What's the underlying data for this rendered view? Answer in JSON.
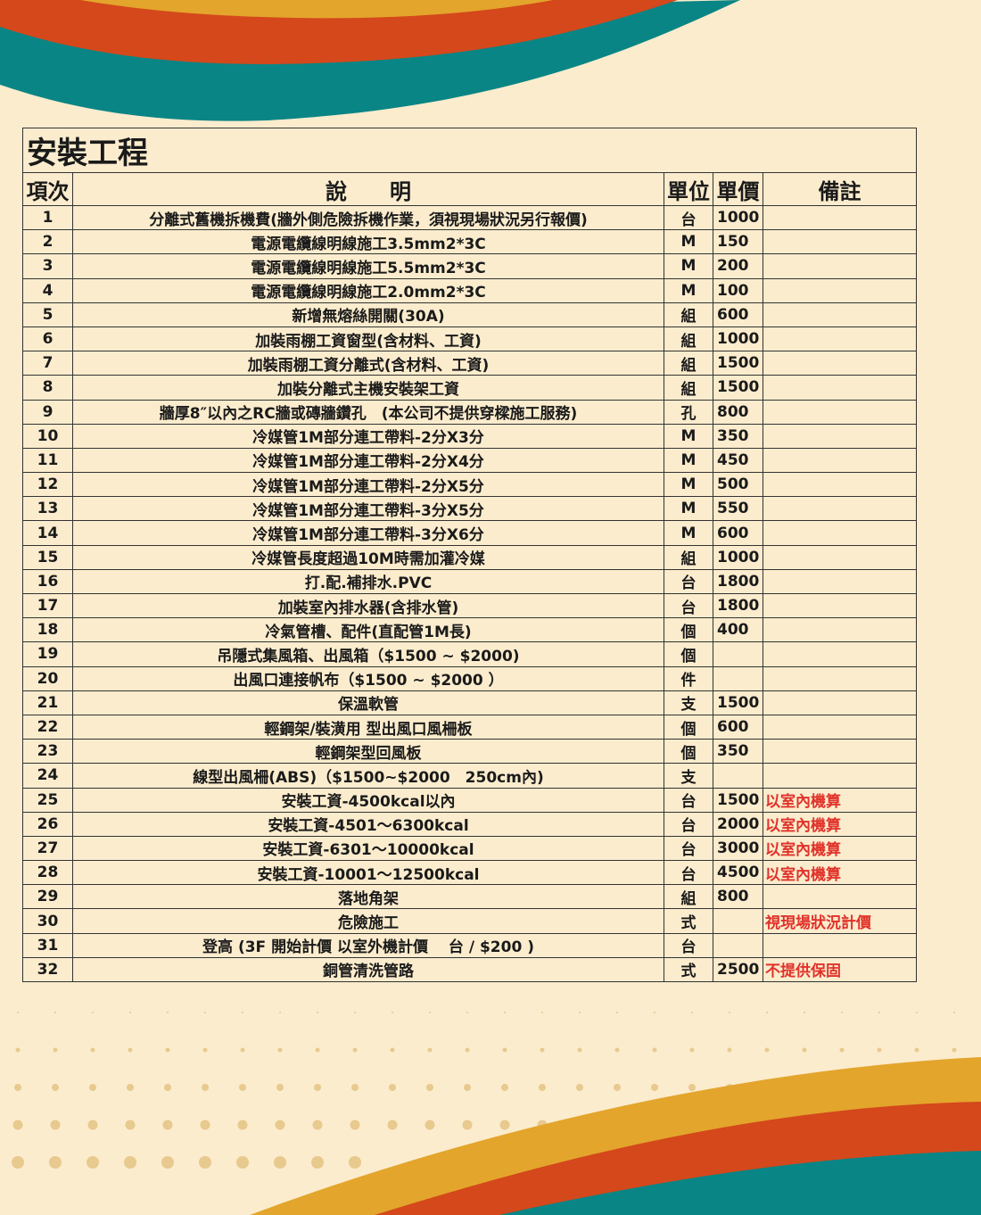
{
  "colors": {
    "background": "#fbeccd",
    "yellow": "#e3a52c",
    "orange": "#d4481b",
    "teal": "#0a8585",
    "note_red": "#e0322a"
  },
  "title": "安裝工程",
  "headers": {
    "no": "項次",
    "desc": "說　　明",
    "unit": "單位",
    "price": "單價",
    "note": "備註"
  },
  "rows": [
    {
      "no": "1",
      "desc": "分離式舊機拆機費(牆外側危險拆機作業，須視現場狀況另行報價)",
      "unit": "台",
      "price": "1000",
      "note": ""
    },
    {
      "no": "2",
      "desc": "電源電纜線明線施工3.5mm2*3C",
      "unit": "M",
      "price": "150",
      "note": ""
    },
    {
      "no": "3",
      "desc": "電源電纜線明線施工5.5mm2*3C",
      "unit": "M",
      "price": "200",
      "note": ""
    },
    {
      "no": "4",
      "desc": "電源電纜線明線施工2.0mm2*3C",
      "unit": "M",
      "price": "100",
      "note": ""
    },
    {
      "no": "5",
      "desc": "新增無熔絲開關(30A)",
      "unit": "組",
      "price": "600",
      "note": ""
    },
    {
      "no": "6",
      "desc": "加裝雨棚工資窗型(含材料、工資)",
      "unit": "組",
      "price": "1000",
      "note": ""
    },
    {
      "no": "7",
      "desc": "加裝雨棚工資分離式(含材料、工資)",
      "unit": "組",
      "price": "1500",
      "note": ""
    },
    {
      "no": "8",
      "desc": "加裝分離式主機安裝架工資",
      "unit": "組",
      "price": "1500",
      "note": ""
    },
    {
      "no": "9",
      "desc": "牆厚8″以內之RC牆或磚牆鑽孔　(本公司不提供穿樑施工服務)",
      "unit": "孔",
      "price": "800",
      "note": ""
    },
    {
      "no": "10",
      "desc": "冷媒管1M部分連工帶料-2分X3分",
      "unit": "M",
      "price": "350",
      "note": ""
    },
    {
      "no": "11",
      "desc": "冷媒管1M部分連工帶料-2分X4分",
      "unit": "M",
      "price": "450",
      "note": ""
    },
    {
      "no": "12",
      "desc": "冷媒管1M部分連工帶料-2分X5分",
      "unit": "M",
      "price": "500",
      "note": ""
    },
    {
      "no": "13",
      "desc": "冷媒管1M部分連工帶料-3分X5分",
      "unit": "M",
      "price": "550",
      "note": ""
    },
    {
      "no": "14",
      "desc": "冷媒管1M部分連工帶料-3分X6分",
      "unit": "M",
      "price": "600",
      "note": ""
    },
    {
      "no": "15",
      "desc": "冷媒管長度超過10M時需加灌冷媒",
      "unit": "組",
      "price": "1000",
      "note": ""
    },
    {
      "no": "16",
      "desc": "打.配.補排水.PVC",
      "unit": "台",
      "price": "1800",
      "note": ""
    },
    {
      "no": "17",
      "desc": "加裝室內排水器(含排水管)",
      "unit": "台",
      "price": "1800",
      "note": ""
    },
    {
      "no": "18",
      "desc": "冷氣管槽、配件(直配管1M長)",
      "unit": "個",
      "price": "400",
      "note": ""
    },
    {
      "no": "19",
      "desc": "吊隱式集風箱、出風箱（$1500 ~ $2000)",
      "unit": "個",
      "price": "",
      "note": ""
    },
    {
      "no": "20",
      "desc": "出風口連接帆布（$1500 ~ $2000 ）",
      "unit": "件",
      "price": "",
      "note": ""
    },
    {
      "no": "21",
      "desc": "保溫軟管",
      "unit": "支",
      "price": "1500",
      "note": ""
    },
    {
      "no": "22",
      "desc": "輕鋼架/裝潢用 型出風口風柵板",
      "unit": "個",
      "price": "600",
      "note": ""
    },
    {
      "no": "23",
      "desc": "輕鋼架型回風板",
      "unit": "個",
      "price": "350",
      "note": ""
    },
    {
      "no": "24",
      "desc": "線型出風柵(ABS)（$1500~$2000　250cm內)",
      "unit": "支",
      "price": "",
      "note": ""
    },
    {
      "no": "25",
      "desc": "安裝工資-4500kcal以內",
      "unit": "台",
      "price": "1500",
      "note": "以室內機算"
    },
    {
      "no": "26",
      "desc": "安裝工資-4501～6300kcal",
      "unit": "台",
      "price": "2000",
      "note": "以室內機算"
    },
    {
      "no": "27",
      "desc": "安裝工資-6301～10000kcal",
      "unit": "台",
      "price": "3000",
      "note": "以室內機算"
    },
    {
      "no": "28",
      "desc": "安裝工資-10001～12500kcal",
      "unit": "台",
      "price": "4500",
      "note": "以室內機算"
    },
    {
      "no": "29",
      "desc": "落地角架",
      "unit": "組",
      "price": "800",
      "note": ""
    },
    {
      "no": "30",
      "desc": "危險施工",
      "unit": "式",
      "price": "",
      "note": "視現場狀況計價"
    },
    {
      "no": "31",
      "desc": "登高 (3F 開始計價 以室外機計價　 台 / $200 )",
      "unit": "台",
      "price": "",
      "note": ""
    },
    {
      "no": "32",
      "desc": "銅管清洗管路",
      "unit": "式",
      "price": "2500",
      "note": "不提供保固"
    }
  ]
}
